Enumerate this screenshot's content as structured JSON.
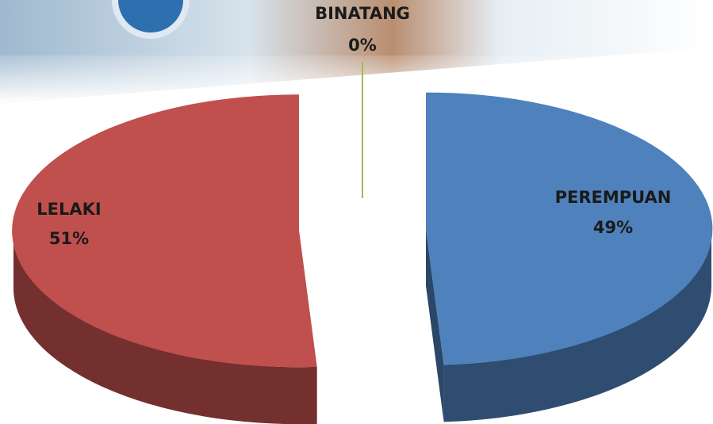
{
  "chart_data": {
    "type": "pie3d",
    "categories": [
      "BINATANG",
      "PEREMPUAN",
      "LELAKI"
    ],
    "values": [
      0,
      49,
      51
    ],
    "value_labels": [
      "0%",
      "49%",
      "51%"
    ],
    "colors": [
      "#9bbb59",
      "#4f81bd",
      "#c0504d"
    ]
  }
}
